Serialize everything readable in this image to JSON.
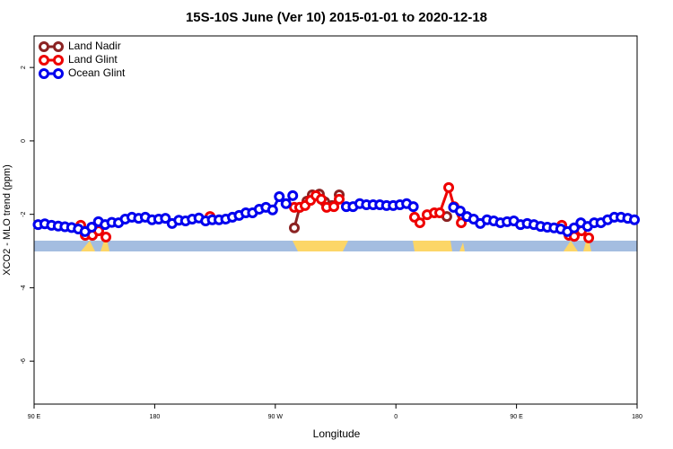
{
  "chart_data": {
    "type": "line",
    "title": "15S-10S June (Ver 10)   2015-01-01 to 2020-12-18",
    "x_label": "Longitude",
    "y_label": "XCO2 - MLO trend (ppm)",
    "xlim": [
      90,
      540
    ],
    "ylim": [
      -7.17,
      2.86
    ],
    "xticks": [
      {
        "value": 90,
        "label": "90 E"
      },
      {
        "value": 180,
        "label": "180"
      },
      {
        "value": 270,
        "label": "90 W"
      },
      {
        "value": 360,
        "label": "0"
      },
      {
        "value": 450,
        "label": "90 E"
      },
      {
        "value": 540,
        "label": "180"
      }
    ],
    "yticks": [
      2,
      0,
      -2,
      -4,
      -6
    ],
    "legend": "top-left",
    "series": [
      {
        "name": "Land Nadir",
        "color": "#8b2323",
        "x": [
          284.2,
          288.2,
          293.6,
          297.6,
          302.9,
          306.9,
          312.3,
          317.7,
          null,
          398.0
        ],
        "values": [
          -2.37,
          -1.81,
          -1.64,
          -1.47,
          -1.45,
          -1.66,
          -1.76,
          -1.47,
          null,
          -2.06
        ]
      },
      {
        "name": "Land Glint",
        "color": "#ee0000",
        "x": [
          124.8,
          128.2,
          133.5,
          138.2,
          143.6,
          null,
          221.3,
          null,
          284.2,
          288.2,
          292.2,
          296.3,
          300.3,
          304.3,
          308.3,
          313.7,
          317.7,
          null,
          373.9,
          377.9,
          383.3,
          388.7,
          392.7,
          399.4,
          403.4,
          408.8,
          null,
          483.8,
          489.2,
          493.1,
          498.5,
          503.9
        ],
        "values": [
          -2.3,
          -2.57,
          -2.57,
          -2.45,
          -2.62,
          null,
          -2.06,
          null,
          -1.81,
          -1.81,
          -1.76,
          -1.62,
          -1.49,
          -1.59,
          -1.81,
          -1.79,
          -1.59,
          null,
          -2.08,
          -2.23,
          -2.01,
          -1.96,
          -1.96,
          -1.27,
          -1.79,
          -2.23,
          null,
          -2.3,
          -2.57,
          -2.6,
          -2.45,
          -2.64
        ]
      },
      {
        "name": "Ocean Glint",
        "color": "#0000ee",
        "x": [
          93,
          98,
          103,
          108,
          113,
          118,
          123,
          128,
          133,
          138,
          143,
          148,
          153,
          158,
          163,
          168,
          173,
          178,
          183,
          188,
          193,
          198,
          203,
          208,
          213,
          218,
          223,
          228,
          233,
          238,
          243,
          248,
          253,
          258,
          263,
          268,
          273,
          278,
          283,
          null,
          323,
          328,
          333,
          338,
          343,
          348,
          353,
          358,
          363,
          368,
          373,
          null,
          403,
          408,
          413,
          418,
          423,
          428,
          433,
          438,
          443,
          448,
          453,
          458,
          463,
          468,
          473,
          478,
          483,
          488,
          493,
          498,
          503,
          508,
          513,
          518,
          523,
          528,
          533,
          538
        ],
        "values": [
          -2.28,
          -2.26,
          -2.3,
          -2.32,
          -2.34,
          -2.36,
          -2.4,
          -2.47,
          -2.35,
          -2.2,
          -2.28,
          -2.22,
          -2.23,
          -2.13,
          -2.08,
          -2.11,
          -2.08,
          -2.15,
          -2.13,
          -2.11,
          -2.25,
          -2.16,
          -2.18,
          -2.13,
          -2.1,
          -2.18,
          -2.15,
          -2.15,
          -2.13,
          -2.08,
          -2.03,
          -1.96,
          -1.96,
          -1.86,
          -1.81,
          -1.88,
          -1.52,
          -1.71,
          -1.49,
          null,
          -1.79,
          -1.79,
          -1.71,
          -1.74,
          -1.74,
          -1.74,
          -1.76,
          -1.76,
          -1.74,
          -1.71,
          -1.79,
          null,
          -1.81,
          -1.91,
          -2.06,
          -2.13,
          -2.25,
          -2.15,
          -2.18,
          -2.23,
          -2.2,
          -2.18,
          -2.28,
          -2.25,
          -2.28,
          -2.33,
          -2.35,
          -2.37,
          -2.4,
          -2.47,
          -2.37,
          -2.23,
          -2.33,
          -2.23,
          -2.23,
          -2.15,
          -2.08,
          -2.08,
          -2.11,
          -2.15
        ]
      }
    ]
  }
}
